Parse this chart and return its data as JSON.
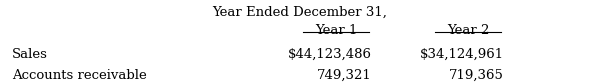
{
  "header": "Year Ended December 31,",
  "col1_header": "Year 1",
  "col2_header": "Year 2",
  "row1_label": "Sales",
  "row1_col1": "$44,123,486",
  "row1_col2": "$34,124,961",
  "row2_label": "Accounts receivable",
  "row2_col1": "749,321",
  "row2_col2": "719,365",
  "bg_color": "#ffffff",
  "font_size": 9.5,
  "font_family": "serif"
}
